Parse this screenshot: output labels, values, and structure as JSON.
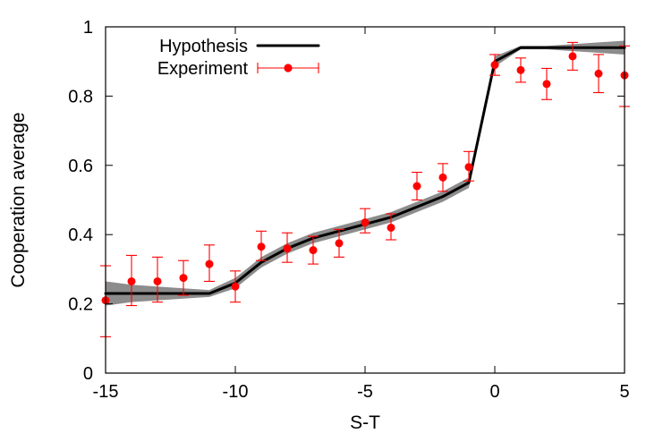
{
  "chart_data": {
    "type": "line",
    "title": "",
    "xlabel": "S-T",
    "ylabel": "Cooperation average",
    "xlim": [
      -15,
      5
    ],
    "ylim": [
      0,
      1
    ],
    "xticks": [
      -15,
      -10,
      -5,
      0,
      5
    ],
    "yticks": [
      0,
      0.2,
      0.4,
      0.6,
      0.8,
      1
    ],
    "xtick_labels": [
      "-15",
      "-10",
      "-5",
      "0",
      "5"
    ],
    "ytick_labels": [
      "0",
      "0.2",
      "0.4",
      "0.6",
      "0.8",
      "1"
    ],
    "grid": false,
    "legend_position": "top-left",
    "series": [
      {
        "name": "Hypothesis",
        "type": "line",
        "color": "#000000",
        "band_color": "#8c8c8c",
        "x": [
          -15,
          -14,
          -13,
          -12,
          -11,
          -10,
          -9,
          -8,
          -7,
          -6,
          -5,
          -4,
          -3,
          -2,
          -1,
          0,
          1,
          2,
          3,
          4,
          5
        ],
        "y": [
          0.23,
          0.23,
          0.23,
          0.23,
          0.23,
          0.26,
          0.32,
          0.36,
          0.39,
          0.41,
          0.43,
          0.45,
          0.48,
          0.51,
          0.55,
          0.9,
          0.94,
          0.94,
          0.94,
          0.94,
          0.94
        ],
        "band_lower": [
          0.195,
          0.205,
          0.21,
          0.215,
          0.22,
          0.245,
          0.305,
          0.345,
          0.375,
          0.395,
          0.415,
          0.435,
          0.465,
          0.495,
          0.535,
          0.885,
          0.935,
          0.935,
          0.93,
          0.925,
          0.92
        ],
        "band_upper": [
          0.265,
          0.255,
          0.25,
          0.245,
          0.24,
          0.275,
          0.335,
          0.375,
          0.405,
          0.425,
          0.445,
          0.465,
          0.495,
          0.525,
          0.565,
          0.915,
          0.945,
          0.945,
          0.95,
          0.955,
          0.96
        ]
      },
      {
        "name": "Experiment",
        "type": "scatter",
        "color": "#ff0000",
        "x": [
          -15,
          -14,
          -13,
          -12,
          -11,
          -10,
          -9,
          -8,
          -7,
          -6,
          -5,
          -4,
          -3,
          -2,
          -1,
          0,
          1,
          2,
          3,
          4,
          5
        ],
        "y": [
          0.21,
          0.265,
          0.265,
          0.275,
          0.315,
          0.25,
          0.365,
          0.36,
          0.355,
          0.375,
          0.435,
          0.42,
          0.54,
          0.565,
          0.595,
          0.89,
          0.875,
          0.835,
          0.915,
          0.865,
          0.86
        ],
        "error_lower": [
          0.105,
          0.195,
          0.205,
          0.225,
          0.265,
          0.205,
          0.325,
          0.32,
          0.315,
          0.335,
          0.405,
          0.385,
          0.5,
          0.525,
          0.555,
          0.86,
          0.84,
          0.79,
          0.875,
          0.81,
          0.77
        ],
        "error_upper": [
          0.31,
          0.34,
          0.335,
          0.325,
          0.37,
          0.295,
          0.41,
          0.405,
          0.395,
          0.415,
          0.475,
          0.46,
          0.58,
          0.605,
          0.64,
          0.92,
          0.91,
          0.88,
          0.955,
          0.92,
          0.945
        ]
      }
    ]
  }
}
